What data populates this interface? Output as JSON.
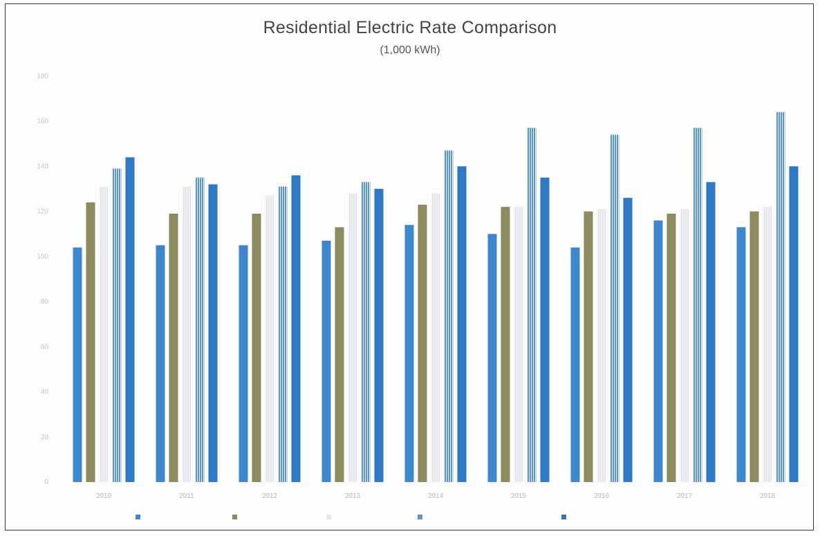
{
  "chart_data": {
    "type": "bar",
    "title": "Residential Electric Rate Comparison",
    "subtitle": "(1,000 kWh)",
    "xlabel": "",
    "ylabel": "",
    "categories": [
      "2010",
      "2011",
      "2012",
      "2013",
      "2014",
      "2015",
      "2016",
      "2017",
      "2018"
    ],
    "ylim": [
      0,
      180
    ],
    "yticks": [
      0,
      20,
      40,
      60,
      80,
      100,
      120,
      140,
      160,
      180
    ],
    "grid": false,
    "legend": "bottom",
    "series": [
      {
        "color": "#3f85cc",
        "values": [
          104,
          105,
          105,
          107,
          114,
          110,
          104,
          116,
          113
        ]
      },
      {
        "color": "#8c8a5e",
        "values": [
          124,
          119,
          119,
          113,
          123,
          122,
          120,
          119,
          120
        ]
      },
      {
        "color": "#e4e6ea",
        "values": [
          131,
          131,
          127,
          128,
          128,
          122,
          121,
          121,
          122
        ]
      },
      {
        "color": "#5b96d2",
        "values": [
          139,
          135,
          131,
          133,
          147,
          157,
          154,
          157,
          164
        ]
      },
      {
        "color": "#2f78c6",
        "values": [
          144,
          132,
          136,
          130,
          140,
          135,
          126,
          133,
          140
        ]
      }
    ]
  }
}
